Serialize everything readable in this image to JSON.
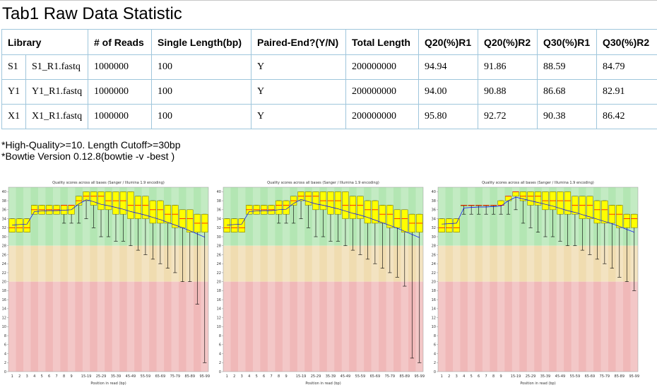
{
  "page": {
    "title": "Tab1 Raw Data Statistic"
  },
  "table": {
    "headers": [
      "Library",
      "# of Reads",
      "Single Length(bp)",
      "Paired-End?(Y/N)",
      "Total Length",
      "Q20(%)R1",
      "Q20(%)R2",
      "Q30(%)R1",
      "Q30(%)R2"
    ],
    "rows": [
      {
        "code": "S1",
        "file": "S1_R1.fastq",
        "reads": "1000000",
        "single_length": "100",
        "paired": "Y",
        "total_length": "200000000",
        "q20_r1": "94.94",
        "q20_r2": "91.86",
        "q30_r1": "88.59",
        "q30_r2": "84.79"
      },
      {
        "code": "Y1",
        "file": "Y1_R1.fastq",
        "reads": "1000000",
        "single_length": "100",
        "paired": "Y",
        "total_length": "200000000",
        "q20_r1": "94.00",
        "q20_r2": "90.88",
        "q30_r1": "86.68",
        "q30_r2": "82.91"
      },
      {
        "code": "X1",
        "file": "X1_R1.fastq",
        "reads": "1000000",
        "single_length": "100",
        "paired": "Y",
        "total_length": "200000000",
        "q20_r1": "95.80",
        "q20_r2": "92.72",
        "q30_r1": "90.38",
        "q30_r2": "86.42"
      }
    ]
  },
  "notes": [
    "*High-Quality>=10. Length Cutoff>=30bp",
    "*Bowtie Version 0.12.8(bowtie -v -best )"
  ],
  "colors": {
    "good_zone": "#b3e6b3",
    "mid_zone": "#f0dcb0",
    "bad_zone": "#f0b8b8",
    "box_fill": "#ffff00",
    "box_stroke": "#6b6b00",
    "median": "#ff0000",
    "mean": "#0000ff",
    "whisker": "#000000",
    "table_border": "#9fc6dc"
  },
  "chart_data": [
    {
      "type": "boxplot",
      "title": "Quality scores across all bases (Sanger / Illumina 1.9 encoding)",
      "xlabel": "Position in read (bp)",
      "ylabel": "",
      "ylim": [
        0,
        41
      ],
      "y_ticks": [
        0,
        2,
        4,
        6,
        8,
        10,
        12,
        14,
        16,
        18,
        20,
        22,
        24,
        26,
        28,
        30,
        32,
        34,
        36,
        38,
        40
      ],
      "zones": {
        "bad": [
          0,
          20
        ],
        "mid": [
          20,
          28
        ],
        "good": [
          28,
          41
        ]
      },
      "categories": [
        "1",
        "2",
        "3",
        "4",
        "5",
        "6",
        "7",
        "8",
        "9",
        "10-14",
        "15-19",
        "20-24",
        "25-29",
        "30-34",
        "35-39",
        "40-44",
        "45-49",
        "50-54",
        "55-59",
        "60-64",
        "65-69",
        "70-74",
        "75-79",
        "80-84",
        "85-89",
        "90-94",
        "95-99"
      ],
      "tick_labels": [
        "1",
        "2",
        "3",
        "4",
        "5",
        "6",
        "7",
        "8",
        "9",
        "15-19",
        "25-29",
        "35-39",
        "45-49",
        "55-59",
        "65-69",
        "75-79",
        "85-89",
        "95-99"
      ],
      "boxes": [
        {
          "q1": 31,
          "median": 32,
          "q3": 34,
          "low": 31,
          "high": 34,
          "mean": 32.6
        },
        {
          "q1": 31,
          "median": 32,
          "q3": 34,
          "low": 31,
          "high": 34,
          "mean": 32.7
        },
        {
          "q1": 31,
          "median": 32,
          "q3": 34,
          "low": 31,
          "high": 34,
          "mean": 32.8
        },
        {
          "q1": 35,
          "median": 36,
          "q3": 37,
          "low": 35,
          "high": 37,
          "mean": 35.6
        },
        {
          "q1": 35,
          "median": 36,
          "q3": 37,
          "low": 35,
          "high": 37,
          "mean": 35.7
        },
        {
          "q1": 35,
          "median": 36,
          "q3": 37,
          "low": 35,
          "high": 37,
          "mean": 35.8
        },
        {
          "q1": 35,
          "median": 36,
          "q3": 37,
          "low": 35,
          "high": 37,
          "mean": 35.8
        },
        {
          "q1": 35,
          "median": 37,
          "q3": 37,
          "low": 33,
          "high": 37,
          "mean": 35.9
        },
        {
          "q1": 35,
          "median": 37,
          "q3": 37,
          "low": 33,
          "high": 37,
          "mean": 36.0
        },
        {
          "q1": 37,
          "median": 38,
          "q3": 39,
          "low": 33,
          "high": 39,
          "mean": 37.3
        },
        {
          "q1": 38,
          "median": 39,
          "q3": 40,
          "low": 34,
          "high": 40,
          "mean": 38.2
        },
        {
          "q1": 37,
          "median": 39,
          "q3": 40,
          "low": 32,
          "high": 40,
          "mean": 37.8
        },
        {
          "q1": 36,
          "median": 39,
          "q3": 40,
          "low": 30,
          "high": 40,
          "mean": 37.2
        },
        {
          "q1": 36,
          "median": 38,
          "q3": 40,
          "low": 30,
          "high": 40,
          "mean": 36.9
        },
        {
          "q1": 35,
          "median": 38,
          "q3": 40,
          "low": 29,
          "high": 40,
          "mean": 36.5
        },
        {
          "q1": 35,
          "median": 38,
          "q3": 40,
          "low": 29,
          "high": 40,
          "mean": 36.1
        },
        {
          "q1": 34,
          "median": 37,
          "q3": 40,
          "low": 28,
          "high": 40,
          "mean": 35.6
        },
        {
          "q1": 34,
          "median": 37,
          "q3": 39,
          "low": 27,
          "high": 39,
          "mean": 35.2
        },
        {
          "q1": 34,
          "median": 37,
          "q3": 39,
          "low": 26,
          "high": 39,
          "mean": 34.8
        },
        {
          "q1": 33,
          "median": 36,
          "q3": 38,
          "low": 25,
          "high": 38,
          "mean": 34.3
        },
        {
          "q1": 33,
          "median": 36,
          "q3": 38,
          "low": 24,
          "high": 38,
          "mean": 33.8
        },
        {
          "q1": 33,
          "median": 35,
          "q3": 37,
          "low": 23,
          "high": 37,
          "mean": 33.2
        },
        {
          "q1": 32,
          "median": 35,
          "q3": 37,
          "low": 22,
          "high": 37,
          "mean": 32.6
        },
        {
          "q1": 32,
          "median": 34,
          "q3": 36,
          "low": 20,
          "high": 36,
          "mean": 32.0
        },
        {
          "q1": 31,
          "median": 34,
          "q3": 36,
          "low": 20,
          "high": 36,
          "mean": 31.3
        },
        {
          "q1": 31,
          "median": 33,
          "q3": 35,
          "low": 15,
          "high": 35,
          "mean": 30.6
        },
        {
          "q1": 31,
          "median": 33,
          "q3": 35,
          "low": 2,
          "high": 35,
          "mean": 29.9
        }
      ]
    },
    {
      "type": "boxplot",
      "title": "Quality scores across all bases (Sanger / Illumina 1.9 encoding)",
      "xlabel": "Position in read (bp)",
      "ylabel": "",
      "ylim": [
        0,
        41
      ],
      "y_ticks": [
        0,
        2,
        4,
        6,
        8,
        10,
        12,
        14,
        16,
        18,
        20,
        22,
        24,
        26,
        28,
        30,
        32,
        34,
        36,
        38,
        40
      ],
      "zones": {
        "bad": [
          0,
          20
        ],
        "mid": [
          20,
          28
        ],
        "good": [
          28,
          41
        ]
      },
      "categories": [
        "1",
        "2",
        "3",
        "4",
        "5",
        "6",
        "7",
        "8",
        "9",
        "10-14",
        "15-19",
        "20-24",
        "25-29",
        "30-34",
        "35-39",
        "40-44",
        "45-49",
        "50-54",
        "55-59",
        "60-64",
        "65-69",
        "70-74",
        "75-79",
        "80-84",
        "85-89",
        "90-94",
        "95-99"
      ],
      "tick_labels": [
        "1",
        "2",
        "3",
        "4",
        "5",
        "6",
        "7",
        "8",
        "9",
        "15-19",
        "25-29",
        "35-39",
        "45-49",
        "55-59",
        "65-69",
        "75-79",
        "85-89",
        "95-99"
      ],
      "boxes": [
        {
          "q1": 31,
          "median": 32,
          "q3": 34,
          "low": 31,
          "high": 34,
          "mean": 32.6
        },
        {
          "q1": 31,
          "median": 32,
          "q3": 34,
          "low": 31,
          "high": 34,
          "mean": 32.7
        },
        {
          "q1": 31,
          "median": 32,
          "q3": 34,
          "low": 31,
          "high": 34,
          "mean": 32.8
        },
        {
          "q1": 35,
          "median": 36,
          "q3": 37,
          "low": 35,
          "high": 37,
          "mean": 35.6
        },
        {
          "q1": 35,
          "median": 36,
          "q3": 37,
          "low": 35,
          "high": 37,
          "mean": 35.7
        },
        {
          "q1": 35,
          "median": 36,
          "q3": 37,
          "low": 35,
          "high": 37,
          "mean": 35.8
        },
        {
          "q1": 35,
          "median": 36,
          "q3": 37,
          "low": 35,
          "high": 37,
          "mean": 35.8
        },
        {
          "q1": 35,
          "median": 37,
          "q3": 38,
          "low": 33,
          "high": 38,
          "mean": 36.0
        },
        {
          "q1": 35,
          "median": 37,
          "q3": 38,
          "low": 33,
          "high": 38,
          "mean": 36.1
        },
        {
          "q1": 37,
          "median": 38,
          "q3": 39,
          "low": 33,
          "high": 39,
          "mean": 37.4
        },
        {
          "q1": 38,
          "median": 39,
          "q3": 40,
          "low": 34,
          "high": 40,
          "mean": 38.3
        },
        {
          "q1": 37,
          "median": 39,
          "q3": 40,
          "low": 32,
          "high": 40,
          "mean": 37.8
        },
        {
          "q1": 36,
          "median": 39,
          "q3": 40,
          "low": 30,
          "high": 40,
          "mean": 37.3
        },
        {
          "q1": 36,
          "median": 38,
          "q3": 40,
          "low": 30,
          "high": 40,
          "mean": 37.0
        },
        {
          "q1": 35,
          "median": 38,
          "q3": 40,
          "low": 29,
          "high": 40,
          "mean": 36.6
        },
        {
          "q1": 35,
          "median": 38,
          "q3": 40,
          "low": 29,
          "high": 40,
          "mean": 36.2
        },
        {
          "q1": 34,
          "median": 37,
          "q3": 40,
          "low": 28,
          "high": 40,
          "mean": 35.7
        },
        {
          "q1": 34,
          "median": 37,
          "q3": 39,
          "low": 27,
          "high": 39,
          "mean": 35.2
        },
        {
          "q1": 34,
          "median": 37,
          "q3": 39,
          "low": 26,
          "high": 39,
          "mean": 34.8
        },
        {
          "q1": 33,
          "median": 36,
          "q3": 38,
          "low": 25,
          "high": 38,
          "mean": 34.3
        },
        {
          "q1": 33,
          "median": 36,
          "q3": 38,
          "low": 24,
          "high": 38,
          "mean": 33.7
        },
        {
          "q1": 33,
          "median": 35,
          "q3": 37,
          "low": 23,
          "high": 37,
          "mean": 33.1
        },
        {
          "q1": 32,
          "median": 35,
          "q3": 37,
          "low": 22,
          "high": 37,
          "mean": 32.5
        },
        {
          "q1": 32,
          "median": 34,
          "q3": 36,
          "low": 21,
          "high": 36,
          "mean": 31.9
        },
        {
          "q1": 31,
          "median": 34,
          "q3": 36,
          "low": 19,
          "high": 36,
          "mean": 31.2
        },
        {
          "q1": 31,
          "median": 33,
          "q3": 35,
          "low": 3,
          "high": 35,
          "mean": 30.5
        },
        {
          "q1": 31,
          "median": 33,
          "q3": 35,
          "low": 2,
          "high": 35,
          "mean": 29.8
        }
      ]
    },
    {
      "type": "boxplot",
      "title": "Quality scores across all bases (Sanger / Illumina 1.9 encoding)",
      "xlabel": "Position in read (bp)",
      "ylabel": "",
      "ylim": [
        0,
        41
      ],
      "y_ticks": [
        0,
        2,
        4,
        6,
        8,
        10,
        12,
        14,
        16,
        18,
        20,
        22,
        24,
        26,
        28,
        30,
        32,
        34,
        36,
        38,
        40
      ],
      "zones": {
        "bad": [
          0,
          20
        ],
        "mid": [
          20,
          28
        ],
        "good": [
          28,
          41
        ]
      },
      "categories": [
        "1",
        "2",
        "3",
        "4",
        "5",
        "6",
        "7",
        "8",
        "9",
        "10-14",
        "15-19",
        "20-24",
        "25-29",
        "30-34",
        "35-39",
        "40-44",
        "45-49",
        "50-54",
        "55-59",
        "60-64",
        "65-69",
        "70-74",
        "75-79",
        "80-84",
        "85-89",
        "90-94",
        "95-99"
      ],
      "tick_labels": [
        "1",
        "2",
        "3",
        "4",
        "5",
        "6",
        "7",
        "8",
        "9",
        "15-19",
        "25-29",
        "35-39",
        "45-49",
        "55-59",
        "65-69",
        "75-79",
        "85-89",
        "95-99"
      ],
      "boxes": [
        {
          "q1": 31,
          "median": 32,
          "q3": 34,
          "low": 31,
          "high": 34,
          "mean": 32.8
        },
        {
          "q1": 31,
          "median": 32,
          "q3": 34,
          "low": 31,
          "high": 34,
          "mean": 32.9
        },
        {
          "q1": 31,
          "median": 32,
          "q3": 34,
          "low": 31,
          "high": 34,
          "mean": 33.0
        },
        {
          "q1": 37,
          "median": 37,
          "q3": 37,
          "low": 35,
          "high": 37,
          "mean": 36.4
        },
        {
          "q1": 37,
          "median": 37,
          "q3": 37,
          "low": 35,
          "high": 37,
          "mean": 36.5
        },
        {
          "q1": 37,
          "median": 37,
          "q3": 37,
          "low": 35,
          "high": 37,
          "mean": 36.6
        },
        {
          "q1": 37,
          "median": 37,
          "q3": 37,
          "low": 35,
          "high": 37,
          "mean": 36.6
        },
        {
          "q1": 37,
          "median": 37,
          "q3": 37,
          "low": 35,
          "high": 37,
          "mean": 36.7
        },
        {
          "q1": 37,
          "median": 37,
          "q3": 38,
          "low": 35,
          "high": 38,
          "mean": 36.8
        },
        {
          "q1": 38,
          "median": 39,
          "q3": 39,
          "low": 35,
          "high": 39,
          "mean": 38.0
        },
        {
          "q1": 39,
          "median": 40,
          "q3": 40,
          "low": 36,
          "high": 40,
          "mean": 38.8
        },
        {
          "q1": 38,
          "median": 39,
          "q3": 40,
          "low": 33,
          "high": 40,
          "mean": 38.4
        },
        {
          "q1": 37,
          "median": 39,
          "q3": 40,
          "low": 32,
          "high": 40,
          "mean": 38.0
        },
        {
          "q1": 37,
          "median": 39,
          "q3": 40,
          "low": 31,
          "high": 40,
          "mean": 37.6
        },
        {
          "q1": 36,
          "median": 38,
          "q3": 40,
          "low": 30,
          "high": 40,
          "mean": 37.2
        },
        {
          "q1": 36,
          "median": 38,
          "q3": 40,
          "low": 30,
          "high": 40,
          "mean": 36.8
        },
        {
          "q1": 35,
          "median": 38,
          "q3": 40,
          "low": 29,
          "high": 40,
          "mean": 36.3
        },
        {
          "q1": 35,
          "median": 38,
          "q3": 40,
          "low": 28,
          "high": 40,
          "mean": 35.8
        },
        {
          "q1": 35,
          "median": 37,
          "q3": 39,
          "low": 28,
          "high": 39,
          "mean": 35.4
        },
        {
          "q1": 34,
          "median": 37,
          "q3": 39,
          "low": 27,
          "high": 39,
          "mean": 34.9
        },
        {
          "q1": 34,
          "median": 37,
          "q3": 39,
          "low": 26,
          "high": 39,
          "mean": 34.4
        },
        {
          "q1": 33,
          "median": 36,
          "q3": 38,
          "low": 25,
          "high": 38,
          "mean": 33.9
        },
        {
          "q1": 33,
          "median": 36,
          "q3": 38,
          "low": 24,
          "high": 38,
          "mean": 33.4
        },
        {
          "q1": 33,
          "median": 35,
          "q3": 37,
          "low": 23,
          "high": 37,
          "mean": 32.9
        },
        {
          "q1": 32,
          "median": 35,
          "q3": 37,
          "low": 21,
          "high": 37,
          "mean": 32.3
        },
        {
          "q1": 32,
          "median": 34,
          "q3": 35,
          "low": 20,
          "high": 35,
          "mean": 31.6
        },
        {
          "q1": 32,
          "median": 34,
          "q3": 35,
          "low": 18,
          "high": 35,
          "mean": 31.0
        }
      ]
    }
  ]
}
